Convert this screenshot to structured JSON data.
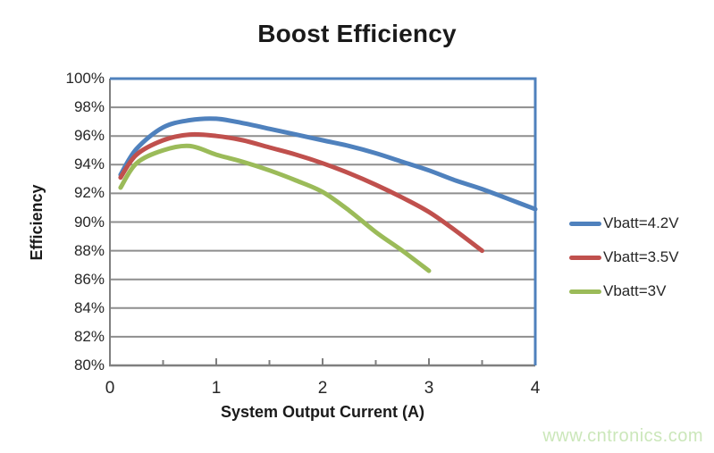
{
  "watermark": "www.cntronics.com",
  "colors": {
    "series_blue": "#4F81BD",
    "series_red": "#C0504D",
    "series_green": "#9BBB59",
    "gridline": "#8e8e8e",
    "axis_line": "#7f7f7f",
    "plot_border": "#4F81BD",
    "tick_label": "#262626",
    "watermark_green": "#cbe7ba"
  },
  "chart_data": {
    "type": "line",
    "title": "Boost Efficiency",
    "xlabel": "System Output Current (A)",
    "ylabel": "Efficiency",
    "xlim": [
      0,
      4
    ],
    "ylim": [
      80,
      100
    ],
    "y_unit": "%",
    "grid": "horizontal",
    "legend_position": "right",
    "x_ticks": {
      "labels": [
        "0",
        "1",
        "2",
        "3",
        "4"
      ],
      "values": [
        0,
        1,
        2,
        3,
        4
      ]
    },
    "x_minor_tick_step": 0.5,
    "y_ticks": {
      "labels": [
        "100%",
        "98%",
        "96%",
        "94%",
        "92%",
        "90%",
        "88%",
        "86%",
        "84%",
        "82%",
        "80%"
      ],
      "values": [
        100,
        98,
        96,
        94,
        92,
        90,
        88,
        86,
        84,
        82,
        80
      ]
    },
    "series": [
      {
        "name": "Vbatt=4.2V",
        "color": "#4F81BD",
        "x": [
          0.1,
          0.25,
          0.5,
          0.75,
          1.0,
          1.25,
          1.5,
          1.75,
          2.0,
          2.25,
          2.5,
          2.75,
          3.0,
          3.25,
          3.5,
          3.75,
          4.0
        ],
        "y": [
          93.3,
          95.1,
          96.6,
          97.1,
          97.2,
          96.9,
          96.5,
          96.1,
          95.7,
          95.3,
          94.8,
          94.2,
          93.6,
          92.9,
          92.3,
          91.6,
          90.9
        ]
      },
      {
        "name": "Vbatt=3.5V",
        "color": "#C0504D",
        "x": [
          0.1,
          0.25,
          0.5,
          0.75,
          1.0,
          1.25,
          1.5,
          1.75,
          2.0,
          2.25,
          2.5,
          2.75,
          3.0,
          3.25,
          3.5
        ],
        "y": [
          93.1,
          94.7,
          95.7,
          96.1,
          96.0,
          95.7,
          95.2,
          94.7,
          94.1,
          93.4,
          92.6,
          91.7,
          90.7,
          89.4,
          88.0
        ]
      },
      {
        "name": "Vbatt=3V",
        "color": "#9BBB59",
        "x": [
          0.1,
          0.25,
          0.5,
          0.75,
          1.0,
          1.25,
          1.5,
          1.75,
          2.0,
          2.25,
          2.5,
          2.75,
          3.0
        ],
        "y": [
          92.4,
          94.1,
          95.0,
          95.3,
          94.7,
          94.2,
          93.6,
          92.9,
          92.1,
          90.8,
          89.3,
          88.0,
          86.6
        ]
      }
    ]
  }
}
